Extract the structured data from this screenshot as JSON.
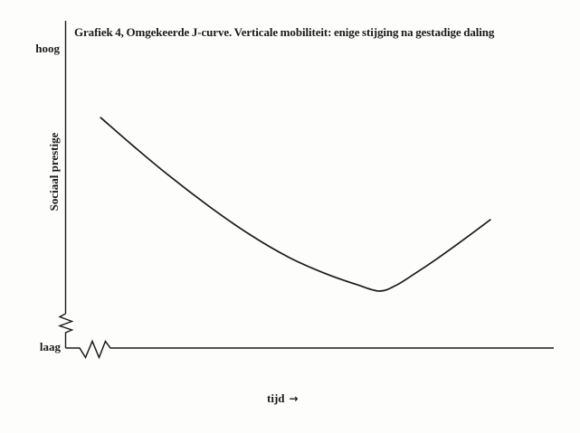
{
  "chart_data": {
    "type": "line",
    "title": "Grafiek 4, Omgekeerde J-curve. Verticale mobiliteit: enige stijging na gestadige daling",
    "xlabel": "tijd",
    "xlabel_arrow": "→",
    "ylabel": "Sociaal prestige",
    "y_tick_labels": {
      "top": "hoog",
      "bottom": "laag"
    },
    "x_range": [
      0,
      100
    ],
    "y_range": [
      0,
      100
    ],
    "grid": false,
    "legend": false,
    "axis_breaks": {
      "y_axis": true,
      "x_axis": true
    },
    "description": "Reversed J-curve: social prestige declines steadily over time, reaches a minimum, then rises somewhat.",
    "series": [
      {
        "name": "Sociaal prestige",
        "points": [
          [
            7.2,
            70.4
          ],
          [
            13.5,
            62.2
          ],
          [
            20.9,
            53.0
          ],
          [
            29.3,
            43.4
          ],
          [
            37.6,
            34.8
          ],
          [
            45.9,
            27.6
          ],
          [
            53.3,
            22.7
          ],
          [
            59.8,
            19.3
          ],
          [
            64.3,
            17.4
          ],
          [
            67.6,
            19.1
          ],
          [
            71.5,
            22.7
          ],
          [
            75.9,
            27.1
          ],
          [
            81.5,
            33.1
          ],
          [
            87.0,
            39.2
          ]
        ]
      }
    ]
  },
  "colors": {
    "ink": "#1b1b1b",
    "paper": "#fdfdfb"
  }
}
